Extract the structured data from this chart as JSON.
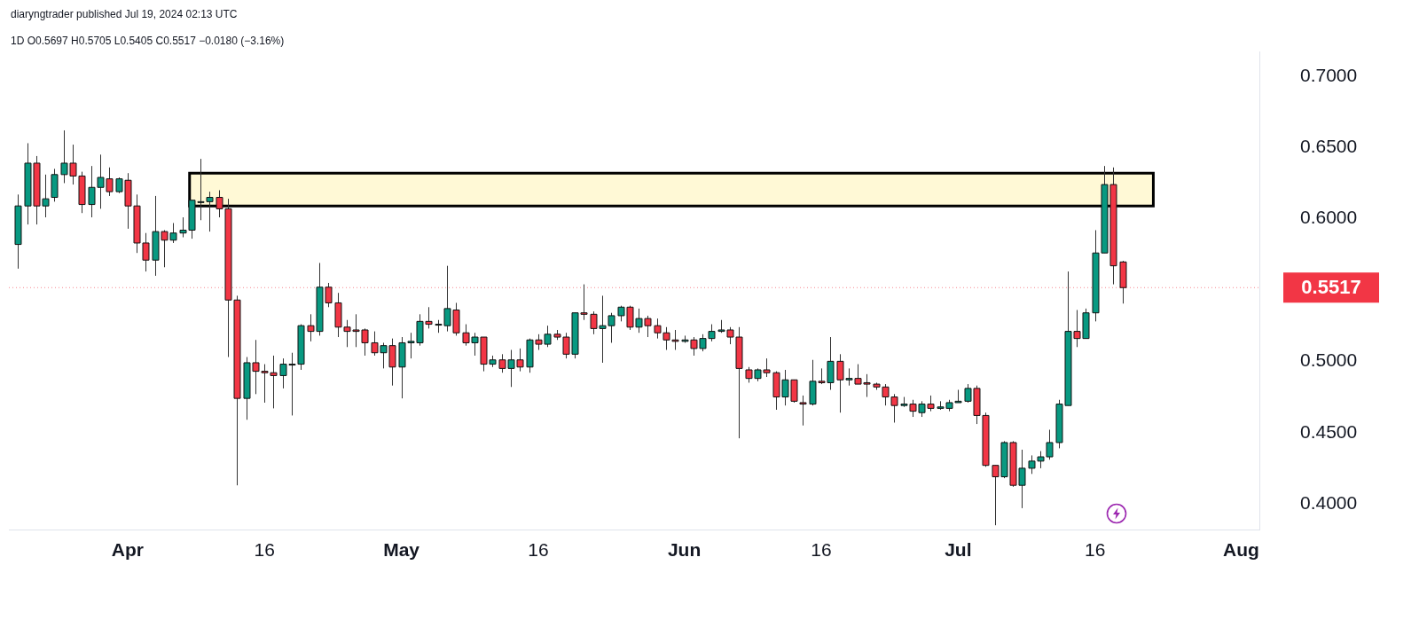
{
  "chart_data": {
    "type": "candlestick",
    "title": "1D O0.5697 H0.5705 L0.5405 C0.5517 −0.0180 (−3.16%)",
    "annotations": [
      "diaryngtrader published Jul 19, 2024 02:13 UTC"
    ],
    "x": [
      "2024-03-20",
      "2024-03-21",
      "2024-03-22",
      "2024-03-23",
      "2024-03-24",
      "2024-03-25",
      "2024-03-26",
      "2024-03-27",
      "2024-03-28",
      "2024-03-29",
      "2024-03-30",
      "2024-03-31",
      "2024-04-01",
      "2024-04-02",
      "2024-04-03",
      "2024-04-04",
      "2024-04-05",
      "2024-04-06",
      "2024-04-07",
      "2024-04-08",
      "2024-04-09",
      "2024-04-10",
      "2024-04-11",
      "2024-04-12",
      "2024-04-13",
      "2024-04-14",
      "2024-04-15",
      "2024-04-16",
      "2024-04-17",
      "2024-04-18",
      "2024-04-19",
      "2024-04-20",
      "2024-04-21",
      "2024-04-22",
      "2024-04-23",
      "2024-04-24",
      "2024-04-25",
      "2024-04-26",
      "2024-04-27",
      "2024-04-28",
      "2024-04-29",
      "2024-04-30",
      "2024-05-01",
      "2024-05-02",
      "2024-05-03",
      "2024-05-04",
      "2024-05-05",
      "2024-05-06",
      "2024-05-07",
      "2024-05-08",
      "2024-05-09",
      "2024-05-10",
      "2024-05-11",
      "2024-05-12",
      "2024-05-13",
      "2024-05-14",
      "2024-05-15",
      "2024-05-16",
      "2024-05-17",
      "2024-05-18",
      "2024-05-19",
      "2024-05-20",
      "2024-05-21",
      "2024-05-22",
      "2024-05-23",
      "2024-05-24",
      "2024-05-25",
      "2024-05-26",
      "2024-05-27",
      "2024-05-28",
      "2024-05-29",
      "2024-05-30",
      "2024-05-31",
      "2024-06-01",
      "2024-06-02",
      "2024-06-03",
      "2024-06-04",
      "2024-06-05",
      "2024-06-06",
      "2024-06-07",
      "2024-06-08",
      "2024-06-09",
      "2024-06-10",
      "2024-06-11",
      "2024-06-12",
      "2024-06-13",
      "2024-06-14",
      "2024-06-15",
      "2024-06-16",
      "2024-06-17",
      "2024-06-18",
      "2024-06-19",
      "2024-06-20",
      "2024-06-21",
      "2024-06-22",
      "2024-06-23",
      "2024-06-24",
      "2024-06-25",
      "2024-06-26",
      "2024-06-27",
      "2024-06-28",
      "2024-06-29",
      "2024-06-30",
      "2024-07-01",
      "2024-07-02",
      "2024-07-03",
      "2024-07-04",
      "2024-07-05",
      "2024-07-06",
      "2024-07-07",
      "2024-07-08",
      "2024-07-09",
      "2024-07-10",
      "2024-07-11",
      "2024-07-12",
      "2024-07-13",
      "2024-07-14",
      "2024-07-15",
      "2024-07-16",
      "2024-07-17",
      "2024-07-18",
      "2024-07-19"
    ],
    "ohlc": [
      [
        0.582,
        0.617,
        0.565,
        0.609
      ],
      [
        0.609,
        0.653,
        0.596,
        0.639
      ],
      [
        0.639,
        0.644,
        0.596,
        0.609
      ],
      [
        0.609,
        0.631,
        0.601,
        0.614
      ],
      [
        0.615,
        0.635,
        0.612,
        0.631
      ],
      [
        0.631,
        0.662,
        0.625,
        0.639
      ],
      [
        0.639,
        0.652,
        0.624,
        0.63
      ],
      [
        0.63,
        0.633,
        0.604,
        0.61
      ],
      [
        0.61,
        0.637,
        0.601,
        0.622
      ],
      [
        0.622,
        0.645,
        0.607,
        0.629
      ],
      [
        0.628,
        0.636,
        0.616,
        0.619
      ],
      [
        0.619,
        0.629,
        0.618,
        0.628
      ],
      [
        0.627,
        0.632,
        0.593,
        0.609
      ],
      [
        0.609,
        0.617,
        0.576,
        0.583
      ],
      [
        0.583,
        0.59,
        0.563,
        0.571
      ],
      [
        0.571,
        0.616,
        0.56,
        0.591
      ],
      [
        0.591,
        0.592,
        0.566,
        0.585
      ],
      [
        0.585,
        0.597,
        0.583,
        0.59
      ],
      [
        0.59,
        0.601,
        0.587,
        0.592
      ],
      [
        0.592,
        0.613,
        0.586,
        0.613
      ],
      [
        0.612,
        0.642,
        0.599,
        0.612
      ],
      [
        0.612,
        0.619,
        0.591,
        0.615
      ],
      [
        0.615,
        0.62,
        0.601,
        0.607
      ],
      [
        0.607,
        0.614,
        0.503,
        0.543
      ],
      [
        0.543,
        0.546,
        0.413,
        0.474
      ],
      [
        0.474,
        0.503,
        0.459,
        0.499
      ],
      [
        0.499,
        0.515,
        0.477,
        0.493
      ],
      [
        0.493,
        0.498,
        0.471,
        0.492
      ],
      [
        0.492,
        0.504,
        0.467,
        0.49
      ],
      [
        0.49,
        0.502,
        0.481,
        0.498
      ],
      [
        0.498,
        0.506,
        0.462,
        0.498
      ],
      [
        0.498,
        0.526,
        0.494,
        0.525
      ],
      [
        0.525,
        0.533,
        0.514,
        0.521
      ],
      [
        0.521,
        0.569,
        0.518,
        0.552
      ],
      [
        0.552,
        0.555,
        0.538,
        0.541
      ],
      [
        0.541,
        0.548,
        0.517,
        0.524
      ],
      [
        0.524,
        0.529,
        0.51,
        0.521
      ],
      [
        0.522,
        0.533,
        0.51,
        0.521
      ],
      [
        0.522,
        0.523,
        0.504,
        0.513
      ],
      [
        0.513,
        0.521,
        0.504,
        0.506
      ],
      [
        0.506,
        0.513,
        0.495,
        0.511
      ],
      [
        0.511,
        0.516,
        0.483,
        0.496
      ],
      [
        0.496,
        0.517,
        0.474,
        0.513
      ],
      [
        0.513,
        0.52,
        0.502,
        0.514
      ],
      [
        0.513,
        0.533,
        0.511,
        0.528
      ],
      [
        0.528,
        0.538,
        0.523,
        0.526
      ],
      [
        0.526,
        0.529,
        0.52,
        0.526
      ],
      [
        0.525,
        0.567,
        0.521,
        0.537
      ],
      [
        0.536,
        0.541,
        0.518,
        0.52
      ],
      [
        0.52,
        0.526,
        0.511,
        0.513
      ],
      [
        0.513,
        0.52,
        0.504,
        0.517
      ],
      [
        0.517,
        0.517,
        0.493,
        0.498
      ],
      [
        0.498,
        0.504,
        0.496,
        0.501
      ],
      [
        0.501,
        0.505,
        0.492,
        0.495
      ],
      [
        0.495,
        0.508,
        0.482,
        0.501
      ],
      [
        0.501,
        0.509,
        0.493,
        0.496
      ],
      [
        0.496,
        0.516,
        0.492,
        0.515
      ],
      [
        0.515,
        0.519,
        0.508,
        0.512
      ],
      [
        0.512,
        0.525,
        0.51,
        0.519
      ],
      [
        0.519,
        0.522,
        0.515,
        0.517
      ],
      [
        0.517,
        0.52,
        0.502,
        0.505
      ],
      [
        0.505,
        0.534,
        0.502,
        0.534
      ],
      [
        0.534,
        0.554,
        0.529,
        0.533
      ],
      [
        0.533,
        0.535,
        0.519,
        0.523
      ],
      [
        0.523,
        0.546,
        0.499,
        0.525
      ],
      [
        0.525,
        0.534,
        0.513,
        0.532
      ],
      [
        0.532,
        0.539,
        0.528,
        0.538
      ],
      [
        0.538,
        0.539,
        0.522,
        0.524
      ],
      [
        0.524,
        0.537,
        0.52,
        0.53
      ],
      [
        0.53,
        0.532,
        0.517,
        0.525
      ],
      [
        0.525,
        0.53,
        0.516,
        0.52
      ],
      [
        0.52,
        0.524,
        0.508,
        0.515
      ],
      [
        0.515,
        0.522,
        0.508,
        0.514
      ],
      [
        0.514,
        0.518,
        0.513,
        0.515
      ],
      [
        0.515,
        0.517,
        0.504,
        0.509
      ],
      [
        0.509,
        0.519,
        0.507,
        0.516
      ],
      [
        0.516,
        0.526,
        0.514,
        0.521
      ],
      [
        0.521,
        0.529,
        0.52,
        0.522
      ],
      [
        0.522,
        0.524,
        0.512,
        0.517
      ],
      [
        0.517,
        0.524,
        0.446,
        0.495
      ],
      [
        0.494,
        0.496,
        0.485,
        0.488
      ],
      [
        0.488,
        0.495,
        0.486,
        0.494
      ],
      [
        0.494,
        0.502,
        0.489,
        0.492
      ],
      [
        0.492,
        0.493,
        0.466,
        0.475
      ],
      [
        0.475,
        0.494,
        0.469,
        0.487
      ],
      [
        0.487,
        0.487,
        0.471,
        0.472
      ],
      [
        0.471,
        0.476,
        0.455,
        0.47
      ],
      [
        0.47,
        0.501,
        0.469,
        0.486
      ],
      [
        0.486,
        0.495,
        0.484,
        0.485
      ],
      [
        0.485,
        0.517,
        0.48,
        0.5
      ],
      [
        0.5,
        0.505,
        0.464,
        0.487
      ],
      [
        0.487,
        0.495,
        0.483,
        0.488
      ],
      [
        0.488,
        0.498,
        0.484,
        0.484
      ],
      [
        0.485,
        0.491,
        0.475,
        0.484
      ],
      [
        0.484,
        0.485,
        0.48,
        0.482
      ],
      [
        0.482,
        0.484,
        0.469,
        0.475
      ],
      [
        0.475,
        0.477,
        0.457,
        0.469
      ],
      [
        0.469,
        0.475,
        0.468,
        0.47
      ],
      [
        0.47,
        0.473,
        0.461,
        0.465
      ],
      [
        0.464,
        0.472,
        0.461,
        0.47
      ],
      [
        0.47,
        0.476,
        0.465,
        0.467
      ],
      [
        0.467,
        0.472,
        0.466,
        0.468
      ],
      [
        0.467,
        0.473,
        0.465,
        0.471
      ],
      [
        0.471,
        0.48,
        0.471,
        0.472
      ],
      [
        0.472,
        0.484,
        0.471,
        0.481
      ],
      [
        0.481,
        0.483,
        0.456,
        0.462
      ],
      [
        0.462,
        0.464,
        0.426,
        0.427
      ],
      [
        0.427,
        0.427,
        0.385,
        0.419
      ],
      [
        0.419,
        0.444,
        0.418,
        0.443
      ],
      [
        0.443,
        0.444,
        0.412,
        0.413
      ],
      [
        0.413,
        0.438,
        0.397,
        0.425
      ],
      [
        0.425,
        0.434,
        0.421,
        0.43
      ],
      [
        0.43,
        0.437,
        0.425,
        0.433
      ],
      [
        0.433,
        0.452,
        0.431,
        0.443
      ],
      [
        0.443,
        0.473,
        0.439,
        0.47
      ],
      [
        0.469,
        0.563,
        0.469,
        0.521
      ],
      [
        0.521,
        0.536,
        0.51,
        0.516
      ],
      [
        0.516,
        0.537,
        0.516,
        0.534
      ],
      [
        0.534,
        0.592,
        0.528,
        0.576
      ],
      [
        0.576,
        0.637,
        0.576,
        0.624
      ],
      [
        0.624,
        0.636,
        0.554,
        0.567
      ],
      [
        0.5697,
        0.5705,
        0.5405,
        0.5517
      ]
    ],
    "colors": [
      "#089981",
      "#089981",
      "#f23645",
      "#089981",
      "#089981",
      "#089981",
      "#f23645",
      "#f23645",
      "#089981",
      "#089981",
      "#f23645",
      "#089981",
      "#f23645",
      "#f23645",
      "#f23645",
      "#089981",
      "#f23645",
      "#089981",
      "#089981",
      "#089981",
      "#089981",
      "#089981",
      "#f23645",
      "#f23645",
      "#f23645",
      "#089981",
      "#f23645",
      "#f23645",
      "#f23645",
      "#089981",
      "#089981",
      "#089981",
      "#f23645",
      "#089981",
      "#f23645",
      "#f23645",
      "#f23645",
      "#f23645",
      "#f23645",
      "#f23645",
      "#089981",
      "#f23645",
      "#089981",
      "#089981",
      "#089981",
      "#f23645",
      "#089981",
      "#089981",
      "#f23645",
      "#f23645",
      "#089981",
      "#f23645",
      "#089981",
      "#f23645",
      "#089981",
      "#f23645",
      "#089981",
      "#f23645",
      "#089981",
      "#f23645",
      "#f23645",
      "#089981",
      "#f23645",
      "#f23645",
      "#089981",
      "#089981",
      "#089981",
      "#f23645",
      "#089981",
      "#f23645",
      "#f23645",
      "#f23645",
      "#f23645",
      "#089981",
      "#f23645",
      "#089981",
      "#089981",
      "#089981",
      "#f23645",
      "#f23645",
      "#f23645",
      "#089981",
      "#f23645",
      "#f23645",
      "#089981",
      "#f23645",
      "#f23645",
      "#089981",
      "#f23645",
      "#089981",
      "#f23645",
      "#089981",
      "#f23645",
      "#f23645",
      "#f23645",
      "#f23645",
      "#f23645",
      "#089981",
      "#f23645",
      "#089981",
      "#f23645",
      "#089981",
      "#089981",
      "#089981",
      "#089981",
      "#f23645",
      "#f23645",
      "#f23645",
      "#089981",
      "#f23645",
      "#089981",
      "#089981",
      "#089981",
      "#089981",
      "#089981",
      "#089981",
      "#f23645",
      "#089981",
      "#089981",
      "#089981",
      "#f23645",
      "#f23645"
    ],
    "xlim": [
      "2024-03-19",
      "2024-08-03"
    ],
    "xticks": [
      {
        "value": "2024-04-01",
        "label": "Apr"
      },
      {
        "value": "2024-04-16",
        "label": "16"
      },
      {
        "value": "2024-05-01",
        "label": "May"
      },
      {
        "value": "2024-05-16",
        "label": "16"
      },
      {
        "value": "2024-06-01",
        "label": "Jun"
      },
      {
        "value": "2024-06-16",
        "label": "16"
      },
      {
        "value": "2024-07-01",
        "label": "Jul"
      },
      {
        "value": "2024-07-16",
        "label": "16"
      },
      {
        "value": "2024-08-01",
        "label": "Aug"
      }
    ],
    "ylim": [
      0.382,
      0.717
    ],
    "yticks": [
      {
        "value": 0.4,
        "label": "0.4000"
      },
      {
        "value": 0.45,
        "label": "0.4500"
      },
      {
        "value": 0.5,
        "label": "0.5000"
      },
      {
        "value": 0.6,
        "label": "0.6000"
      },
      {
        "value": 0.65,
        "label": "0.6500"
      },
      {
        "value": 0.7,
        "label": "0.7000"
      }
    ],
    "ref_lines": [
      {
        "axis": "y",
        "value": 0.5517,
        "label": "0.5517",
        "color": "#f23645",
        "line_style": "dotted"
      }
    ],
    "bands": [
      {
        "axis": "y",
        "from": 0.609,
        "to": 0.632,
        "color": "#fff9d6"
      }
    ],
    "grid": false,
    "legend": false
  }
}
